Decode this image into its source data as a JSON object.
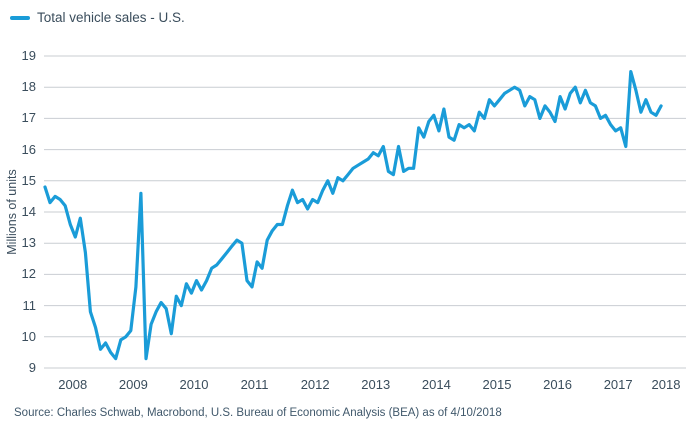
{
  "legend": {
    "label": "Total vehicle sales - U.S."
  },
  "source_note": "Source: Charles Schwab, Macrobond, U.S. Bureau of Economic Analysis (BEA) as of 4/10/2018",
  "theme": {
    "line_color": "#1A9CD8",
    "grid_color": "#C9CDD2",
    "text_color": "#3A4D5C",
    "source_text_color": "#40586B",
    "background": "#FFFFFF"
  },
  "chart_data": {
    "type": "line",
    "title": "Total vehicle sales - U.S.",
    "xlabel": "",
    "ylabel": "Millions of units",
    "ylim": [
      9,
      19
    ],
    "y_ticks": [
      9,
      10,
      11,
      12,
      13,
      14,
      15,
      16,
      17,
      18,
      19
    ],
    "x_ticks": [
      "2008",
      "2009",
      "2010",
      "2011",
      "2012",
      "2013",
      "2014",
      "2015",
      "2016",
      "2017",
      "2018"
    ],
    "grid": "horizontal",
    "legend_position": "top-left",
    "frequency": "monthly",
    "x_start": "2008-01",
    "x_end": "2018-03",
    "series": [
      {
        "name": "Total vehicle sales - U.S.",
        "units": "millions of units, annualized",
        "values": [
          14.8,
          14.3,
          14.5,
          14.4,
          14.2,
          13.6,
          13.2,
          13.8,
          12.7,
          10.8,
          10.3,
          9.6,
          9.8,
          9.5,
          9.3,
          9.9,
          10.0,
          10.2,
          11.6,
          14.6,
          9.3,
          10.4,
          10.8,
          11.1,
          10.9,
          10.1,
          11.3,
          11.0,
          11.7,
          11.4,
          11.8,
          11.5,
          11.8,
          12.2,
          12.3,
          12.5,
          12.7,
          12.9,
          13.1,
          13.0,
          11.8,
          11.6,
          12.4,
          12.2,
          13.1,
          13.4,
          13.6,
          13.6,
          14.2,
          14.7,
          14.3,
          14.4,
          14.1,
          14.4,
          14.3,
          14.7,
          15.0,
          14.6,
          15.1,
          15.0,
          15.2,
          15.4,
          15.5,
          15.6,
          15.7,
          15.9,
          15.8,
          16.1,
          15.3,
          15.2,
          16.1,
          15.3,
          15.4,
          15.4,
          16.7,
          16.4,
          16.9,
          17.1,
          16.6,
          17.3,
          16.4,
          16.3,
          16.8,
          16.7,
          16.8,
          16.6,
          17.2,
          17.0,
          17.6,
          17.4,
          17.6,
          17.8,
          17.9,
          18.0,
          17.9,
          17.4,
          17.7,
          17.6,
          17.0,
          17.4,
          17.2,
          16.9,
          17.7,
          17.3,
          17.8,
          18.0,
          17.5,
          17.9,
          17.5,
          17.4,
          17.0,
          17.1,
          16.8,
          16.6,
          16.7,
          16.1,
          18.5,
          17.9,
          17.2,
          17.6,
          17.2,
          17.1,
          17.4
        ]
      }
    ]
  }
}
